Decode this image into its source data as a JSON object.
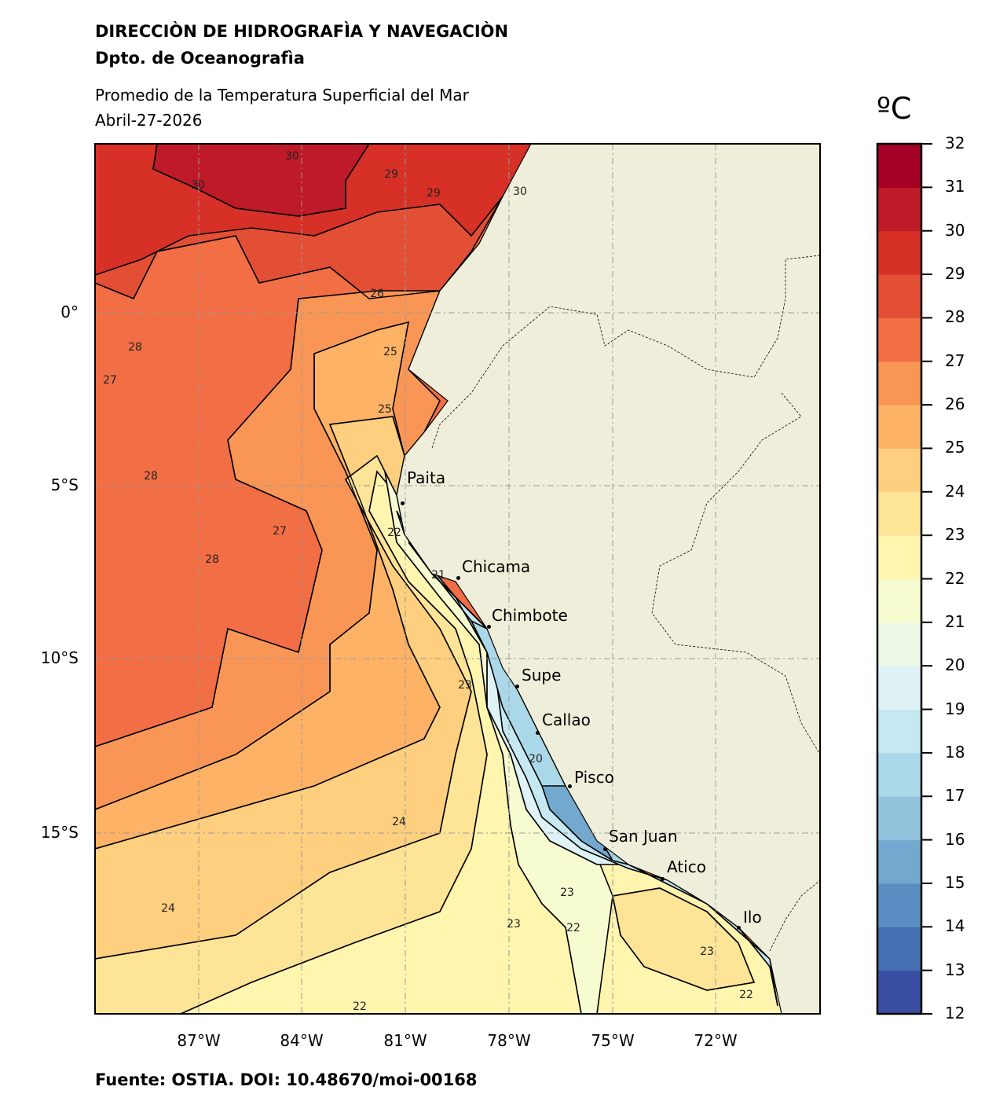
{
  "header": {
    "org": "DIRECCIÒN DE HIDROGRAFÌA Y NAVEGACIÒN",
    "dept": "Dpto. de Oceanografìa",
    "title": "Promedio de la Temperatura Superficial del Mar",
    "date": "Abril-27-2026"
  },
  "footer": {
    "source": "Fuente: OSTIA. DOI: 10.48670/moi-00168"
  },
  "axes": {
    "lon_ticks": [
      "87°W",
      "84°W",
      "81°W",
      "78°W",
      "75°W",
      "72°W"
    ],
    "lat_ticks": [
      "0°",
      "5°S",
      "10°S",
      "15°S"
    ]
  },
  "cities": [
    "Paita",
    "Chicama",
    "Chimbote",
    "Supe",
    "Callao",
    "Pisco",
    "San Juan",
    "Atico",
    "Ilo"
  ],
  "contour_labels": [
    "30",
    "30",
    "29",
    "29",
    "30",
    "28",
    "27",
    "26",
    "25",
    "25",
    "28",
    "27",
    "28",
    "22",
    "21",
    "23",
    "20",
    "24",
    "24",
    "22",
    "23",
    "23",
    "22",
    "23",
    "22"
  ],
  "colorbar": {
    "unit": "ºC",
    "min": 12,
    "max": 32,
    "ticks": [
      "12",
      "13",
      "14",
      "15",
      "16",
      "17",
      "18",
      "19",
      "20",
      "21",
      "22",
      "23",
      "24",
      "25",
      "26",
      "27",
      "28",
      "29",
      "30",
      "31",
      "32"
    ],
    "colors": [
      "#313695",
      "#3a4fa2",
      "#4470b1",
      "#5b8fc3",
      "#74a9cf",
      "#92c3dd",
      "#abd8e8",
      "#c6e8f2",
      "#dff2f6",
      "#eef8e6",
      "#f7fbd0",
      "#fff5ae",
      "#fee497",
      "#fdcf7e",
      "#fdb265",
      "#f99656",
      "#f26e45",
      "#e34f35",
      "#d73027",
      "#be1a27",
      "#a50026"
    ],
    "land_color": "#efeeda"
  }
}
